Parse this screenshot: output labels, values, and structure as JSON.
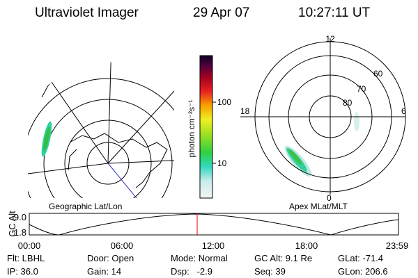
{
  "header": {
    "title": "Ultraviolet Imager",
    "date": "29 Apr 07",
    "time": "10:27:11 UT"
  },
  "colorbar": {
    "label": "photon cm⁻²s⁻¹",
    "ticks": [
      "100",
      "10"
    ]
  },
  "left_map": {
    "label": "Geographic Lat/Lon"
  },
  "right_map": {
    "label": "Apex MLat/MLT",
    "mlt_labels": [
      "12",
      "18",
      "6",
      "0"
    ],
    "mlat_labels": [
      "60",
      "70",
      "80"
    ]
  },
  "altitude_plot": {
    "axis_label": "GC Alt",
    "yticks": [
      "9.0",
      "1.8"
    ],
    "xticks": [
      "00:00",
      "06:00",
      "12:00",
      "18:00",
      "23:59"
    ]
  },
  "info": [
    [
      "Flt: LBHL",
      "Door: Open",
      "Mode: Normal",
      "GC Alt: 9.1 Re",
      "GLat: -71.4"
    ],
    [
      "IP: 36.0",
      "Gain: 14",
      "Dsp:   -2.9",
      "Seq: 39",
      "GLon: 206.6"
    ]
  ]
}
